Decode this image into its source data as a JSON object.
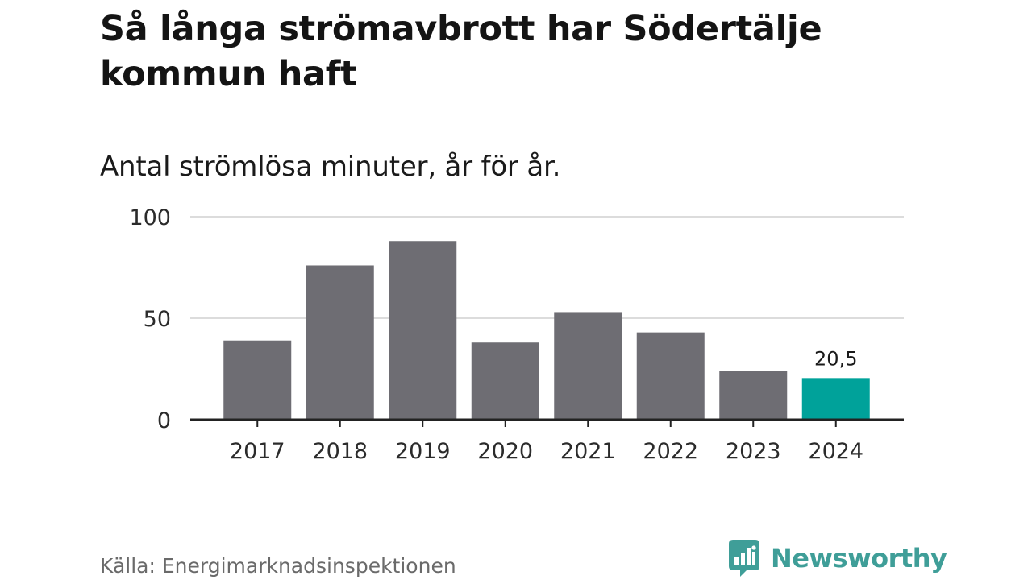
{
  "title": "Så långa strömavbrott har Södertälje kommun haft",
  "subtitle": "Antal strömlösa minuter, år för år.",
  "source": "Källa: Energimarknadsinspektionen",
  "brand": {
    "name": "Newsworthy",
    "icon": "newsworthy-logo-icon",
    "color": "#3f9e98"
  },
  "colors": {
    "bar": "#6e6d73",
    "highlight": "#00a29a",
    "grid": "#dcdcdc",
    "axis": "#222222"
  },
  "chart_data": {
    "type": "bar",
    "title": "Så långa strömavbrott har Södertälje kommun haft",
    "subtitle": "Antal strömlösa minuter, år för år.",
    "xlabel": "",
    "ylabel": "",
    "categories": [
      "2017",
      "2018",
      "2019",
      "2020",
      "2021",
      "2022",
      "2023",
      "2024"
    ],
    "values": [
      39,
      76,
      88,
      38,
      53,
      43,
      24,
      20.5
    ],
    "highlight_index": 7,
    "data_labels": [
      {
        "index": 7,
        "text": "20,5"
      }
    ],
    "ylim": [
      0,
      100
    ],
    "yticks": [
      0,
      50,
      100
    ],
    "ytick_labels": [
      "0",
      "50",
      "100"
    ],
    "grid": true
  }
}
